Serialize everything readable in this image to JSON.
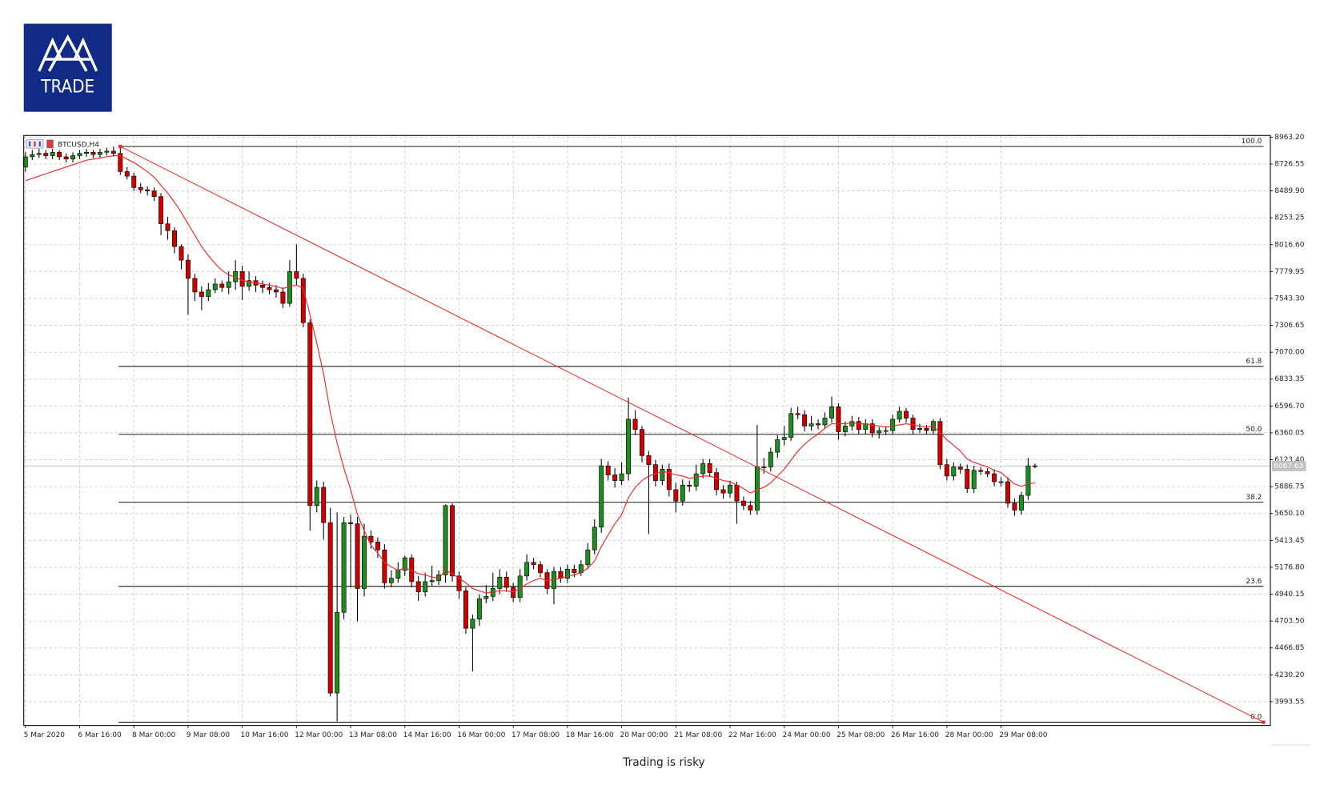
{
  "logo": {
    "text": "TRADE"
  },
  "chart_data": {
    "type": "candlestick",
    "symbol": "BTCUSD,H4",
    "categories": [
      "5 Mar 2020",
      null,
      null,
      null,
      null,
      null,
      null,
      null,
      "6 Mar 16:00",
      null,
      null,
      null,
      null,
      null,
      null,
      null,
      "8 Mar 00:00",
      null,
      null,
      null,
      null,
      null,
      null,
      null,
      "9 Mar 08:00",
      null,
      null,
      null,
      null,
      null,
      null,
      null,
      "10 Mar 16:00",
      null,
      null,
      null,
      null,
      null,
      null,
      null,
      "12 Mar 00:00",
      null,
      null,
      null,
      null,
      null,
      null,
      null,
      "13 Mar 08:00",
      null,
      null,
      null,
      null,
      null,
      null,
      null,
      "14 Mar 16:00",
      null,
      null,
      null,
      null,
      null,
      null,
      null,
      "16 Mar 00:00",
      null,
      null,
      null,
      null,
      null,
      null,
      null,
      "17 Mar 08:00",
      null,
      null,
      null,
      null,
      null,
      null,
      null,
      "18 Mar 16:00",
      null,
      null,
      null,
      null,
      null,
      null,
      null,
      "20 Mar 00:00",
      null,
      null,
      null,
      null,
      null,
      null,
      null,
      "21 Mar 08:00",
      null,
      null,
      null,
      null,
      null,
      null,
      null,
      "22 Mar 16:00",
      null,
      null,
      null,
      null,
      null,
      null,
      null,
      "24 Mar 00:00",
      null,
      null,
      null,
      null,
      null,
      null,
      null,
      "25 Mar 08:00",
      null,
      null,
      null,
      null,
      null,
      null,
      null,
      "26 Mar 16:00",
      null,
      null,
      null,
      null,
      null,
      null,
      null,
      "28 Mar 00:00",
      null,
      null,
      null,
      null,
      null,
      null,
      null,
      "29 Mar 08:00",
      null,
      null,
      null,
      null,
      null
    ],
    "open": [
      8700,
      8790,
      8810,
      8820,
      8800,
      8830,
      8790,
      8770,
      8800,
      8820,
      8830,
      8810,
      8830,
      8840,
      8820,
      8660,
      8620,
      8520,
      8500,
      8490,
      8440,
      8200,
      8140,
      8000,
      7880,
      7720,
      7600,
      7560,
      7620,
      7670,
      7640,
      7690,
      7780,
      7650,
      7700,
      7660,
      7640,
      7620,
      7600,
      7500,
      7780,
      7720,
      7330,
      5720,
      5880,
      5570,
      4070,
      4780,
      5570,
      5560,
      4990,
      5450,
      5400,
      5330,
      5040,
      5080,
      5150,
      5260,
      5050,
      4960,
      5050,
      5060,
      5110,
      5720,
      5100,
      4970,
      4640,
      4720,
      4900,
      4920,
      4990,
      5090,
      5000,
      4910,
      5100,
      5220,
      5200,
      5130,
      4990,
      5140,
      5080,
      5160,
      5130,
      5200,
      5330,
      5530,
      6070,
      5990,
      5940,
      6000,
      6480,
      6390,
      6160,
      6080,
      5940,
      6040,
      5860,
      5760,
      5900,
      5890,
      6000,
      6090,
      6010,
      5860,
      5830,
      5900,
      5760,
      5720,
      5680,
      6060,
      6060,
      6190,
      6300,
      6320,
      6530,
      6520,
      6420,
      6440,
      6430,
      6490,
      6590,
      6370,
      6420,
      6460,
      6390,
      6440,
      6360,
      6380,
      6380,
      6480,
      6550,
      6490,
      6390,
      6400,
      6380,
      6460,
      6080,
      5980,
      6060,
      6040,
      5870,
      6030,
      6020,
      6000,
      5930,
      5930,
      5740,
      5680,
      5810,
      6070
    ],
    "high": [
      8830,
      8850,
      8860,
      8850,
      8860,
      8850,
      8820,
      8830,
      8850,
      8860,
      8850,
      8860,
      8870,
      8880,
      8881,
      8700,
      8650,
      8560,
      8530,
      8520,
      8470,
      8260,
      8170,
      8020,
      7930,
      7760,
      7650,
      7680,
      7720,
      7700,
      7780,
      7880,
      7830,
      7780,
      7740,
      7700,
      7680,
      7660,
      7640,
      7880,
      8020,
      7760,
      7360,
      5940,
      5930,
      5700,
      5660,
      5620,
      5640,
      5620,
      5560,
      5500,
      5440,
      5380,
      5150,
      5220,
      5280,
      5290,
      5100,
      5130,
      5190,
      5150,
      5730,
      5740,
      5140,
      5000,
      4760,
      4940,
      5020,
      5130,
      5160,
      5140,
      5040,
      5160,
      5290,
      5260,
      5230,
      5160,
      5180,
      5180,
      5200,
      5200,
      5240,
      5390,
      5600,
      6130,
      6110,
      6050,
      6100,
      6670,
      6560,
      6420,
      6200,
      6120,
      6080,
      6090,
      5920,
      5950,
      5940,
      6080,
      6130,
      6130,
      6050,
      5900,
      5940,
      5930,
      5800,
      5760,
      6430,
      6140,
      6230,
      6340,
      6420,
      6580,
      6590,
      6560,
      6510,
      6480,
      6540,
      6680,
      6620,
      6460,
      6510,
      6500,
      6480,
      6480,
      6410,
      6420,
      6520,
      6590,
      6580,
      6520,
      6440,
      6430,
      6480,
      6490,
      6130,
      6100,
      6090,
      6080,
      6070,
      6060,
      6050,
      6040,
      5970,
      5970,
      5780,
      5840,
      6140,
      6090
    ],
    "low": [
      8660,
      8760,
      8780,
      8770,
      8770,
      8760,
      8740,
      8740,
      8770,
      8790,
      8780,
      8780,
      8800,
      8790,
      8630,
      8590,
      8490,
      8470,
      8450,
      8400,
      8100,
      8060,
      7940,
      7800,
      7400,
      7520,
      7440,
      7520,
      7590,
      7600,
      7580,
      7620,
      7530,
      7610,
      7600,
      7590,
      7580,
      7550,
      7460,
      7470,
      7660,
      7290,
      5500,
      5660,
      5420,
      4040,
      3820,
      4720,
      5000,
      4700,
      4920,
      5340,
      5260,
      4990,
      5000,
      5040,
      5100,
      5000,
      4880,
      4920,
      5010,
      5020,
      5040,
      5050,
      4900,
      4590,
      4260,
      4660,
      4860,
      4880,
      4940,
      4960,
      4870,
      4870,
      5060,
      5160,
      5090,
      4940,
      4850,
      5040,
      5040,
      5090,
      5100,
      5160,
      5290,
      5480,
      5940,
      5880,
      5900,
      5940,
      6340,
      6100,
      5470,
      5890,
      5900,
      5800,
      5660,
      5720,
      5840,
      5850,
      5960,
      5970,
      5810,
      5780,
      5790,
      5560,
      5680,
      5640,
      5640,
      6000,
      6020,
      6140,
      6250,
      6290,
      6480,
      6370,
      6380,
      6390,
      6400,
      6450,
      6300,
      6330,
      6380,
      6350,
      6350,
      6320,
      6310,
      6340,
      6350,
      6450,
      6450,
      6350,
      6360,
      6350,
      6350,
      6040,
      5940,
      5940,
      6000,
      5830,
      5830,
      5990,
      5970,
      5890,
      5890,
      5700,
      5630,
      5640,
      5770,
      6050
    ],
    "close": [
      8790,
      8810,
      8820,
      8800,
      8830,
      8790,
      8770,
      8800,
      8820,
      8830,
      8810,
      8830,
      8840,
      8820,
      8660,
      8620,
      8520,
      8500,
      8490,
      8440,
      8200,
      8140,
      8000,
      7880,
      7720,
      7600,
      7560,
      7620,
      7670,
      7640,
      7690,
      7780,
      7650,
      7700,
      7660,
      7640,
      7620,
      7600,
      7500,
      7780,
      7720,
      7330,
      5720,
      5880,
      5570,
      4070,
      4780,
      5570,
      5560,
      4990,
      5450,
      5400,
      5330,
      5040,
      5080,
      5150,
      5260,
      5050,
      4960,
      5050,
      5060,
      5110,
      5720,
      5100,
      4970,
      4640,
      4720,
      4900,
      4920,
      4990,
      5090,
      5000,
      4910,
      5100,
      5220,
      5200,
      5130,
      4990,
      5140,
      5080,
      5160,
      5130,
      5200,
      5330,
      5530,
      6070,
      5990,
      5940,
      6000,
      6480,
      6390,
      6160,
      6080,
      5940,
      6040,
      5860,
      5760,
      5900,
      5890,
      6000,
      6090,
      6010,
      5860,
      5830,
      5900,
      5760,
      5720,
      5680,
      6060,
      6060,
      6190,
      6300,
      6320,
      6530,
      6520,
      6420,
      6440,
      6430,
      6490,
      6590,
      6370,
      6420,
      6460,
      6390,
      6440,
      6360,
      6380,
      6380,
      6480,
      6550,
      6490,
      6390,
      6400,
      6380,
      6460,
      6080,
      5980,
      6060,
      6040,
      5870,
      6030,
      6020,
      6000,
      5930,
      5930,
      5740,
      5680,
      5810,
      6070,
      6068
    ],
    "up_color": "#1e8c1e",
    "down_color": "#d00000",
    "moving_average": {
      "color": "#ee2a2a",
      "values": [
        8580,
        8600,
        8620,
        8640,
        8660,
        8680,
        8700,
        8720,
        8740,
        8760,
        8770,
        8780,
        8790,
        8800,
        8800,
        8770,
        8740,
        8700,
        8660,
        8610,
        8540,
        8470,
        8390,
        8300,
        8200,
        8100,
        8000,
        7920,
        7850,
        7790,
        7750,
        7730,
        7700,
        7690,
        7680,
        7670,
        7660,
        7650,
        7630,
        7650,
        7660,
        7630,
        7400,
        7150,
        6880,
        6540,
        6270,
        6050,
        5860,
        5640,
        5500,
        5370,
        5300,
        5220,
        5180,
        5150,
        5170,
        5150,
        5120,
        5110,
        5090,
        5080,
        5150,
        5120,
        5080,
        5040,
        4990,
        4970,
        4950,
        4960,
        4970,
        4970,
        4960,
        4990,
        5030,
        5060,
        5080,
        5060,
        5070,
        5080,
        5100,
        5110,
        5130,
        5170,
        5230,
        5360,
        5460,
        5560,
        5640,
        5790,
        5880,
        5940,
        5980,
        6000,
        6020,
        6010,
        5990,
        5980,
        5960,
        5970,
        5980,
        5980,
        5960,
        5940,
        5930,
        5900,
        5870,
        5830,
        5860,
        5880,
        5920,
        5980,
        6040,
        6120,
        6200,
        6260,
        6310,
        6350,
        6400,
        6440,
        6440,
        6440,
        6450,
        6440,
        6440,
        6430,
        6420,
        6410,
        6420,
        6430,
        6440,
        6430,
        6420,
        6410,
        6420,
        6360,
        6300,
        6250,
        6200,
        6130,
        6100,
        6080,
        6060,
        6030,
        6010,
        5960,
        5910,
        5890,
        5910,
        5920
      ]
    },
    "trend_line": {
      "color": "#ee2a2a",
      "x": [
        14,
        182.75
      ],
      "y": [
        8881,
        3813
      ]
    },
    "fib_levels": [
      {
        "label": "100.0",
        "price": 8881
      },
      {
        "label": "61.8",
        "price": 6945
      },
      {
        "label": "50.0",
        "price": 6347
      },
      {
        "label": "38.2",
        "price": 5749
      },
      {
        "label": "23.6",
        "price": 5009
      },
      {
        "label": "0.0",
        "price": 3813
      }
    ],
    "last_price": 6067.63,
    "ylim": [
      3784,
      8978
    ],
    "yticks": [
      {
        "value": 8963.2,
        "label": "8963.20"
      },
      8726.55,
      {
        "value": 8489.9,
        "label": "8489.90"
      },
      8253.25,
      {
        "value": 8016.6,
        "label": "8016.60"
      },
      7779.95,
      {
        "value": 7543.3,
        "label": "7543.30"
      },
      7306.65,
      {
        "value": 7070,
        "label": "7070.00"
      },
      6833.35,
      {
        "value": 6596.7,
        "label": "6596.70"
      },
      6360.05,
      {
        "value": 6123.4,
        "label": "6123.40"
      },
      5886.75,
      {
        "value": 5650.1,
        "label": "5650.10"
      },
      5413.45,
      {
        "value": 5176.8,
        "label": "5176.80"
      },
      4940.15,
      {
        "value": 4703.5,
        "label": "4703.50"
      },
      4466.85,
      {
        "value": 4230.2,
        "label": "4230.20"
      },
      3993.55
    ],
    "grid": true
  },
  "footer": {
    "text": "Trading is risky"
  }
}
